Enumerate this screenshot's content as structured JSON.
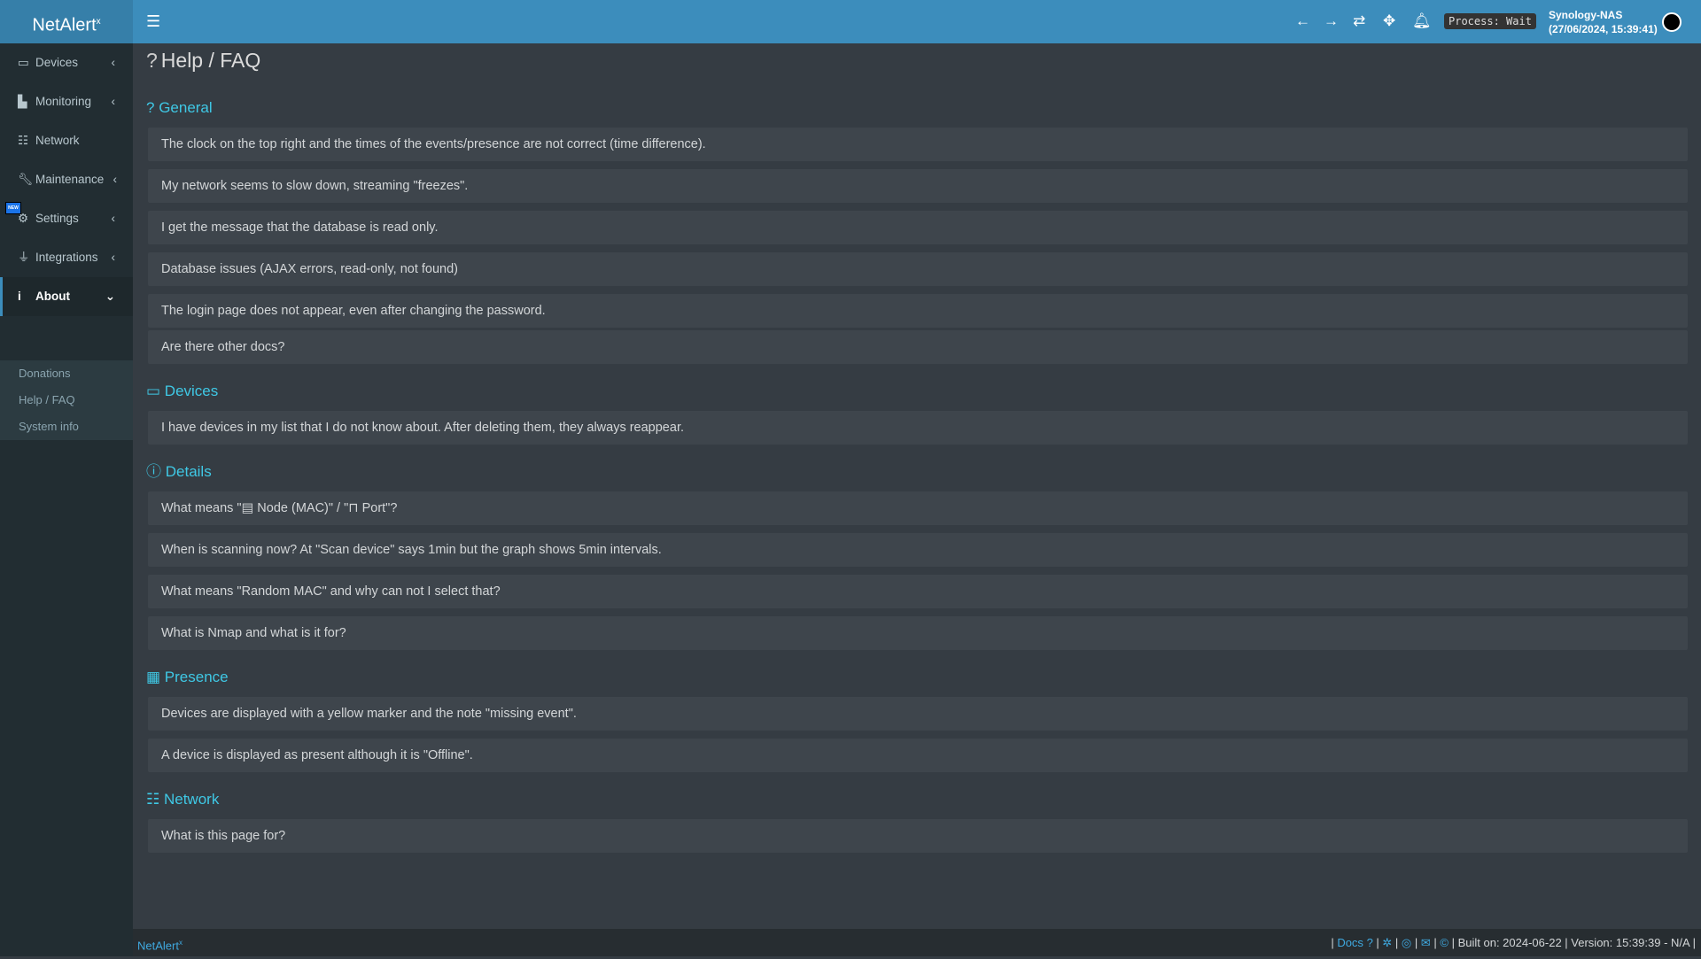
{
  "app": {
    "name": "NetAlert",
    "name_sup": "x"
  },
  "topbar": {
    "process": "Process: Wait",
    "host": "Synology-NAS",
    "datetime": "(27/06/2024, 15:39:41)"
  },
  "sidebar": {
    "items": [
      {
        "label": "Devices",
        "icon": "laptop-icon"
      },
      {
        "label": "Monitoring",
        "icon": "chart-icon"
      },
      {
        "label": "Network",
        "icon": "network-icon"
      },
      {
        "label": "Maintenance",
        "icon": "wrench-icon",
        "badge": "NEW"
      },
      {
        "label": "Settings",
        "icon": "gear-icon"
      },
      {
        "label": "Integrations",
        "icon": "plug-icon"
      },
      {
        "label": "About",
        "icon": "info-icon"
      }
    ],
    "submenu": [
      "Donations",
      "Help / FAQ",
      "System info"
    ]
  },
  "page": {
    "title": "Help / FAQ"
  },
  "sections": [
    {
      "title": "General",
      "items": [
        "The clock on the top right and the times of the events/presence are not correct (time difference).",
        "My network seems to slow down, streaming \"freezes\".",
        "I get the message that the database is read only.",
        "Database issues (AJAX errors, read-only, not found)",
        "The login page does not appear, even after changing the password.",
        "Are there other docs?"
      ]
    },
    {
      "title": "Devices",
      "items": [
        "I have devices in my list that I do not know about. After deleting them, they always reappear."
      ]
    },
    {
      "title": "Details",
      "items": [
        "What means \"▤ Node (MAC)\" / \"⊓ Port\"?",
        "When is scanning now? At \"Scan device\" says 1min but the graph shows 5min intervals.",
        "What means \"Random MAC\" and why can not I select that?",
        "What is Nmap and what is it for?"
      ]
    },
    {
      "title": "Presence",
      "items": [
        "Devices are displayed with a yellow marker and the note \"missing event\".",
        "A device is displayed as present although it is \"Offline\"."
      ]
    },
    {
      "title": "Network",
      "items": [
        "What is this page for?"
      ]
    }
  ],
  "footer": {
    "brand": "NetAlert",
    "brand_sup": "x",
    "docs": "Docs",
    "built": "Built on: 2024-06-22",
    "version": "Version: 15:39:39 - N/A"
  },
  "colors": {
    "header": "#3c8dbc",
    "accent": "#3fc8e5",
    "sidebar": "#222d32"
  }
}
